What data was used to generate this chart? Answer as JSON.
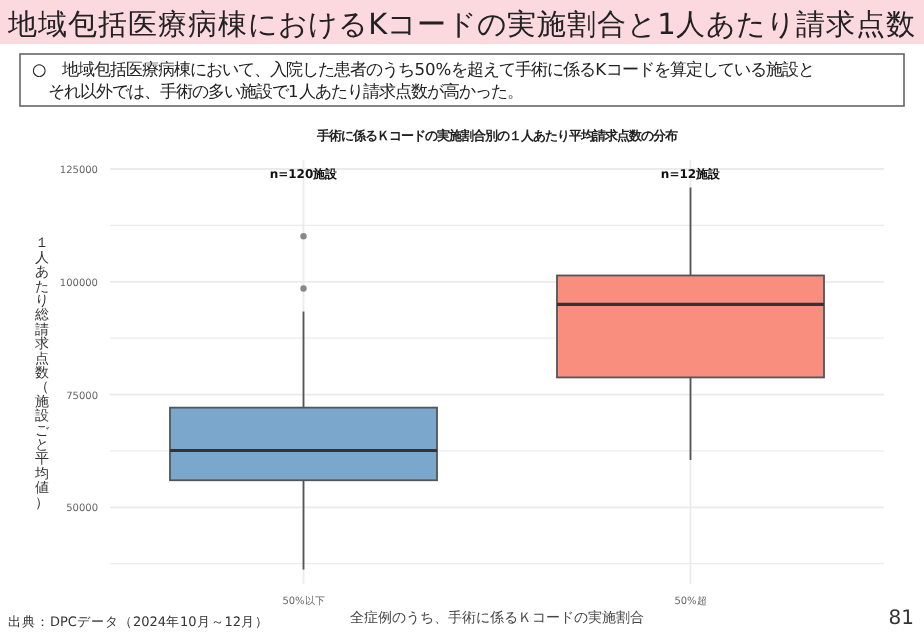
{
  "chart_data": {
    "type": "box",
    "title": "地域包括医療病棟におけるKコードの実施割合と1人あたり請求点数",
    "subtitle": "○　地域包括医療病棟において、入院した患者のうち50%を超えて手術に係るKコードを算定している施設とそれ以外では、手術の多い施設で1人あたり請求点数が高かった。",
    "annotations": [
      "手術に係るＫコードの実施割合別の１人あたり平均請求点数の分布",
      "n=120施設",
      "n=12施設",
      "出典：DPCデータ（2024年10月～12月）",
      "81"
    ],
    "xlabel": "全症例のうち、手術に係るＫコードの実施割合",
    "ylabel": "１人あたり総請求点数（施設ごと平均値）",
    "categories": [
      "50%以下",
      "50%超"
    ],
    "colors": [
      "#7ba7cd",
      "#f98e7e"
    ],
    "boxes": [
      {
        "low": 36200,
        "q1": 56000,
        "median": 62600,
        "q3": 72100,
        "high": 93400,
        "outliers": [
          98500,
          110100
        ]
      },
      {
        "low": 60500,
        "q1": 78800,
        "median": 95000,
        "q3": 101400,
        "high": 120900
      }
    ],
    "ylim": [
      33000,
      127000
    ],
    "yticks": [
      {
        "value": 37500,
        "label": null
      },
      50000,
      {
        "value": 62500,
        "label": null
      },
      75000,
      {
        "value": 87500,
        "label": null
      },
      100000,
      {
        "value": 112500,
        "label": null
      },
      125000
    ],
    "grid": true
  }
}
